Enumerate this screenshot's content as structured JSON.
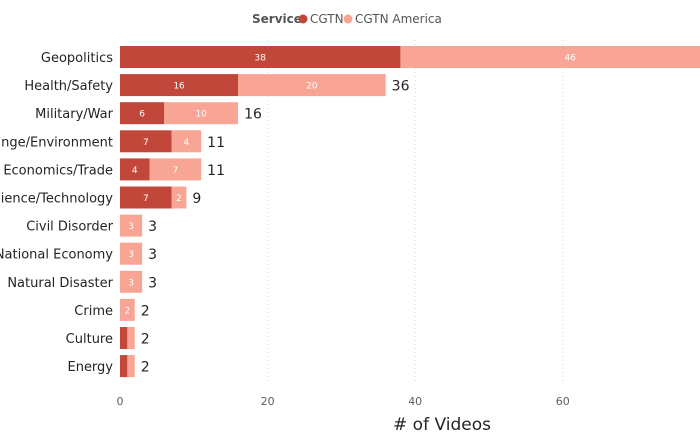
{
  "legend": {
    "title": "Service",
    "items": [
      {
        "label": "CGTN",
        "color": "#c0473a"
      },
      {
        "label": "CGTN America",
        "color": "#f9a595"
      }
    ]
  },
  "chart_data": {
    "type": "bar",
    "orientation": "horizontal",
    "stacked": true,
    "title": "",
    "xlabel": "# of Videos",
    "ylabel": "",
    "xlim": [
      0,
      80
    ],
    "x_ticks": [
      0,
      20,
      40,
      60
    ],
    "grid": true,
    "legend_position": "top",
    "categories": [
      "Geopolitics",
      "Health/Safety",
      "Military/War",
      "ange/Environment",
      "al Economics/Trade",
      "cience/Technology",
      "Civil Disorder",
      "National Economy",
      "Natural Disaster",
      "Crime",
      "Culture",
      "Energy"
    ],
    "series": [
      {
        "name": "CGTN",
        "color": "#c0473a",
        "values": [
          38,
          16,
          6,
          7,
          4,
          7,
          0,
          0,
          0,
          0,
          1,
          1
        ],
        "labels": [
          "38",
          "16",
          "6",
          "7",
          "4",
          "7",
          "",
          "",
          "",
          "",
          "",
          ""
        ]
      },
      {
        "name": "CGTN America",
        "color": "#f9a595",
        "values": [
          46,
          20,
          10,
          4,
          7,
          2,
          3,
          3,
          3,
          2,
          1,
          1
        ],
        "labels": [
          "46",
          "20",
          "10",
          "4",
          "7",
          "2",
          "3",
          "3",
          "3",
          "2",
          "",
          ""
        ]
      }
    ],
    "totals": [
      84,
      36,
      16,
      11,
      11,
      9,
      3,
      3,
      3,
      2,
      2,
      2
    ],
    "total_labels": [
      "",
      "36",
      "16",
      "11",
      "11",
      "9",
      "3",
      "3",
      "3",
      "2",
      "2",
      "2"
    ]
  }
}
